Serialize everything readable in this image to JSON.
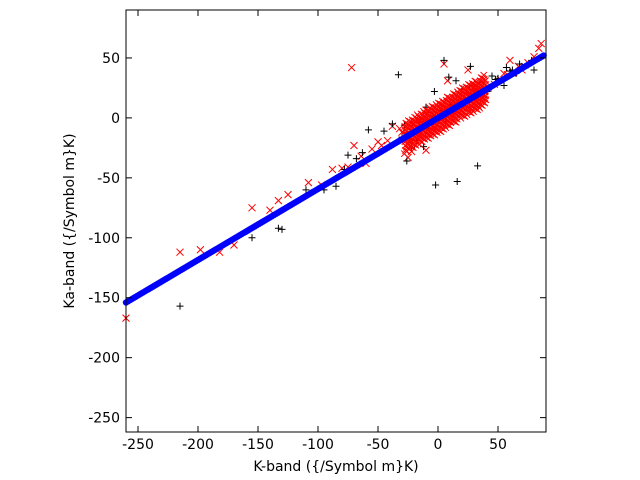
{
  "chart_data": {
    "type": "scatter",
    "title": "",
    "xlabel": "K-band ({/Symbol m}K)",
    "ylabel": "Ka-band ({/Symbol m}K)",
    "xlim": [
      -260,
      90
    ],
    "ylim": [
      -262,
      90
    ],
    "xticks": [
      -250,
      -200,
      -150,
      -100,
      -50,
      0,
      50
    ],
    "yticks": [
      -250,
      -200,
      -150,
      -100,
      -50,
      0,
      50
    ],
    "grid": false,
    "legend": "none",
    "colors": {
      "red": "#ff0000",
      "black": "#000000",
      "blue": "#0000ff",
      "axis": "#000000"
    },
    "series": [
      {
        "marker": "x",
        "color": "#ff0000",
        "x": [
          -260,
          -215,
          -198,
          -182,
          -170,
          -155,
          -140,
          -133,
          -125,
          -108,
          -97,
          -88,
          -80,
          -75,
          -72,
          -70,
          -64,
          -60,
          -55,
          -50,
          -47,
          -42,
          -38,
          -32,
          -30,
          -28,
          -24,
          -20,
          -17,
          -14,
          -11,
          -8,
          -5,
          -3,
          -2,
          0,
          2,
          4,
          6,
          8,
          10,
          12,
          15,
          18,
          20,
          23,
          26,
          28,
          31,
          34,
          38,
          42,
          47,
          52,
          58,
          63,
          67,
          70,
          75,
          80,
          84,
          86,
          -22,
          -25,
          -10,
          5,
          8,
          25,
          30,
          55,
          60
        ],
        "y": [
          -167,
          -112,
          -110,
          -112,
          -106,
          -75,
          -77,
          -69,
          -64,
          -54,
          -56,
          -43,
          -42,
          -41,
          42,
          -23,
          -32,
          -38,
          -26,
          -20,
          -23,
          -19,
          -7,
          -9,
          -12,
          -14,
          -17,
          -5,
          -12,
          -1,
          -8,
          -3,
          -7,
          2,
          -4,
          3,
          -1,
          5,
          0,
          7,
          3,
          9,
          6,
          12,
          10,
          15,
          19,
          10,
          22,
          18,
          20,
          25,
          28,
          32,
          36,
          38,
          43,
          40,
          46,
          51,
          58,
          62,
          -28,
          -33,
          -27,
          45,
          31,
          40,
          26,
          37,
          48
        ]
      },
      {
        "marker": "+",
        "color": "#000000",
        "x": [
          -215,
          -155,
          -133,
          -130,
          -110,
          -95,
          -85,
          -78,
          -75,
          -68,
          -63,
          -58,
          -45,
          -38,
          -33,
          -30,
          -28,
          -26,
          -22,
          -20,
          -18,
          -15,
          -12,
          -10,
          -8,
          -5,
          -2,
          0,
          3,
          7,
          10,
          13,
          16,
          20,
          22,
          26,
          30,
          33,
          38,
          42,
          45,
          50,
          55,
          60,
          65,
          70,
          75,
          80,
          -3,
          5,
          9,
          15,
          27,
          35,
          41,
          48,
          57,
          62,
          68,
          78
        ],
        "y": [
          -157,
          -100,
          -92,
          -93,
          -60,
          -60,
          -57,
          -43,
          -31,
          -34,
          -29,
          -10,
          -11,
          -5,
          36,
          -16,
          -6,
          -36,
          -25,
          -13,
          -19,
          -4,
          -24,
          9,
          -9,
          1,
          -56,
          -1,
          6,
          -3,
          10,
          5,
          -53,
          24,
          12,
          26,
          20,
          -40,
          18,
          25,
          35,
          33,
          27,
          39,
          37,
          42,
          44,
          40,
          22,
          48,
          34,
          31,
          43,
          30,
          22,
          32,
          42,
          40,
          45,
          48
        ]
      },
      {
        "marker": "filled-circle-line",
        "color": "#0000ff",
        "x": [
          -260,
          88
        ],
        "y": [
          -154,
          52
        ]
      }
    ]
  }
}
